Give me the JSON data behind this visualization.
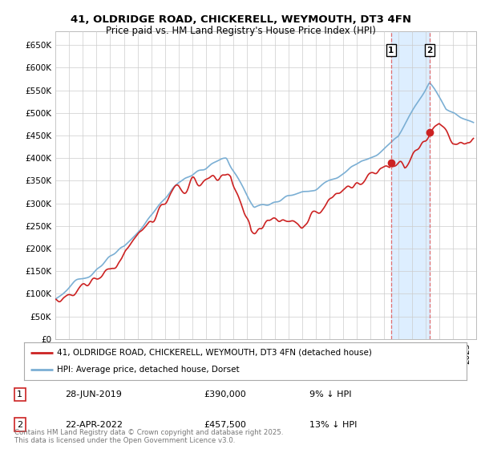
{
  "title1": "41, OLDRIDGE ROAD, CHICKERELL, WEYMOUTH, DT3 4FN",
  "title2": "Price paid vs. HM Land Registry's House Price Index (HPI)",
  "ylim": [
    0,
    680000
  ],
  "yticks": [
    0,
    50000,
    100000,
    150000,
    200000,
    250000,
    300000,
    350000,
    400000,
    450000,
    500000,
    550000,
    600000,
    650000
  ],
  "ytick_labels": [
    "£0",
    "£50K",
    "£100K",
    "£150K",
    "£200K",
    "£250K",
    "£300K",
    "£350K",
    "£400K",
    "£450K",
    "£500K",
    "£550K",
    "£600K",
    "£650K"
  ],
  "hpi_color": "#7bafd4",
  "price_color": "#cc2222",
  "marker1_date": 2019.49,
  "marker1_price": 390000,
  "marker1_label": "1",
  "marker2_date": 2022.31,
  "marker2_price": 457500,
  "marker2_label": "2",
  "vline_color": "#e06060",
  "shade_color": "#ddeeff",
  "legend_label1": "41, OLDRIDGE ROAD, CHICKERELL, WEYMOUTH, DT3 4FN (detached house)",
  "legend_label2": "HPI: Average price, detached house, Dorset",
  "table_row1": [
    "1",
    "28-JUN-2019",
    "£390,000",
    "9% ↓ HPI"
  ],
  "table_row2": [
    "2",
    "22-APR-2022",
    "£457,500",
    "13% ↓ HPI"
  ],
  "footer": "Contains HM Land Registry data © Crown copyright and database right 2025.\nThis data is licensed under the Open Government Licence v3.0.",
  "bg_color": "#ffffff",
  "grid_color": "#cccccc"
}
